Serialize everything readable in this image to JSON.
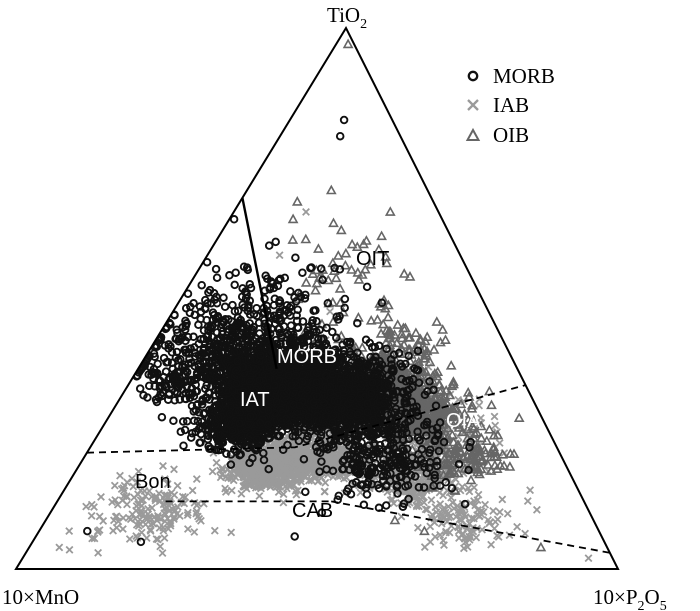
{
  "chart_data": {
    "type": "scatter",
    "subtype": "ternary",
    "title": "",
    "vertices": {
      "top": {
        "main": "TiO",
        "sub": "2"
      },
      "left": {
        "main": "10×MnO",
        "sub": ""
      },
      "right": {
        "main": "10×P",
        "sub": "2",
        "tail": "O",
        "sub2": "5"
      }
    },
    "legend": {
      "placement": "top-right",
      "entries": [
        {
          "name": "MORB",
          "marker": "circle",
          "color": "#111111"
        },
        {
          "name": "IAB",
          "marker": "x",
          "color": "#9a9a9a"
        },
        {
          "name": "OIB",
          "marker": "triangle",
          "color": "#666666"
        }
      ]
    },
    "fields": [
      {
        "label": "OIT",
        "color": "#000000"
      },
      {
        "label": "MORB",
        "color": "#ffffff"
      },
      {
        "label": "IAT",
        "color": "#ffffff"
      },
      {
        "label": "OIA",
        "color": "#ffffff"
      },
      {
        "label": "Bon",
        "color": "#000000"
      },
      {
        "label": "CAB",
        "color": "#000000"
      }
    ],
    "series": [
      {
        "name": "MORB",
        "clusters": [
          {
            "ti": 0.33,
            "mn": 0.43,
            "p": 0.24,
            "spread": 0.05,
            "count": 1700
          },
          {
            "ti": 0.34,
            "mn": 0.36,
            "p": 0.3,
            "spread": 0.06,
            "count": 900
          },
          {
            "ti": 0.31,
            "mn": 0.3,
            "p": 0.39,
            "spread": 0.06,
            "count": 800
          },
          {
            "ti": 0.4,
            "mn": 0.46,
            "p": 0.14,
            "spread": 0.08,
            "count": 400
          },
          {
            "ti": 0.27,
            "mn": 0.51,
            "p": 0.22,
            "spread": 0.05,
            "count": 450
          },
          {
            "ti": 0.2,
            "mn": 0.3,
            "p": 0.5,
            "spread": 0.07,
            "count": 250
          },
          {
            "ti": 0.36,
            "mn": 0.58,
            "p": 0.06,
            "spread": 0.05,
            "count": 130
          },
          {
            "ti": 0.46,
            "mn": 0.35,
            "p": 0.19,
            "spread": 0.07,
            "count": 150
          }
        ],
        "scatter": [
          [
            0.83,
            0.08,
            0.09
          ],
          [
            0.8,
            0.1,
            0.1
          ],
          [
            0.07,
            0.85,
            0.08
          ],
          [
            0.06,
            0.51,
            0.43
          ],
          [
            0.05,
            0.77,
            0.18
          ],
          [
            0.12,
            0.2,
            0.68
          ]
        ]
      },
      {
        "name": "IAB",
        "clusters": [
          {
            "ti": 0.19,
            "mn": 0.5,
            "p": 0.31,
            "spread": 0.04,
            "count": 650
          },
          {
            "ti": 0.21,
            "mn": 0.4,
            "p": 0.39,
            "spread": 0.05,
            "count": 550
          },
          {
            "ti": 0.17,
            "mn": 0.27,
            "p": 0.56,
            "spread": 0.05,
            "count": 320
          },
          {
            "ti": 0.11,
            "mn": 0.73,
            "p": 0.16,
            "spread": 0.06,
            "count": 160
          },
          {
            "ti": 0.09,
            "mn": 0.22,
            "p": 0.69,
            "spread": 0.05,
            "count": 110
          },
          {
            "ti": 0.25,
            "mn": 0.2,
            "p": 0.55,
            "spread": 0.06,
            "count": 130
          },
          {
            "ti": 0.31,
            "mn": 0.38,
            "p": 0.31,
            "spread": 0.08,
            "count": 150
          }
        ],
        "scatter": [
          [
            0.04,
            0.91,
            0.05
          ],
          [
            0.03,
            0.85,
            0.12
          ],
          [
            0.07,
            0.88,
            0.05
          ],
          [
            0.66,
            0.22,
            0.12
          ],
          [
            0.58,
            0.3,
            0.12
          ],
          [
            0.02,
            0.04,
            0.94
          ]
        ]
      },
      {
        "name": "OIB",
        "clusters": [
          {
            "ti": 0.33,
            "mn": 0.24,
            "p": 0.43,
            "spread": 0.05,
            "count": 500
          },
          {
            "ti": 0.29,
            "mn": 0.2,
            "p": 0.51,
            "spread": 0.05,
            "count": 350
          },
          {
            "ti": 0.53,
            "mn": 0.22,
            "p": 0.25,
            "spread": 0.07,
            "count": 55
          },
          {
            "ti": 0.42,
            "mn": 0.18,
            "p": 0.4,
            "spread": 0.06,
            "count": 70
          },
          {
            "ti": 0.21,
            "mn": 0.16,
            "p": 0.63,
            "spread": 0.05,
            "count": 140
          }
        ],
        "scatter": [
          [
            0.97,
            0.01,
            0.02
          ],
          [
            0.7,
            0.16,
            0.14
          ],
          [
            0.66,
            0.08,
            0.26
          ],
          [
            0.04,
            0.11,
            0.85
          ],
          [
            0.09,
            0.33,
            0.58
          ],
          [
            0.07,
            0.29,
            0.64
          ]
        ]
      }
    ],
    "boundaries": [
      {
        "style": "solid",
        "points": [
          [
            0.686,
            0.314,
            0.0
          ],
          [
            0.37,
            0.4,
            0.23
          ]
        ]
      },
      {
        "style": "dashed",
        "points": [
          [
            0.215,
            0.785,
            0.0
          ],
          [
            0.225,
            0.435,
            0.34
          ],
          [
            0.34,
            0.0,
            0.66
          ]
        ]
      },
      {
        "style": "dashed",
        "points": [
          [
            0.125,
            0.695,
            0.18
          ],
          [
            0.125,
            0.42,
            0.455
          ]
        ]
      },
      {
        "style": "dashed",
        "points": [
          [
            0.125,
            0.42,
            0.455
          ],
          [
            0.03,
            0.0,
            0.97
          ]
        ]
      }
    ]
  }
}
